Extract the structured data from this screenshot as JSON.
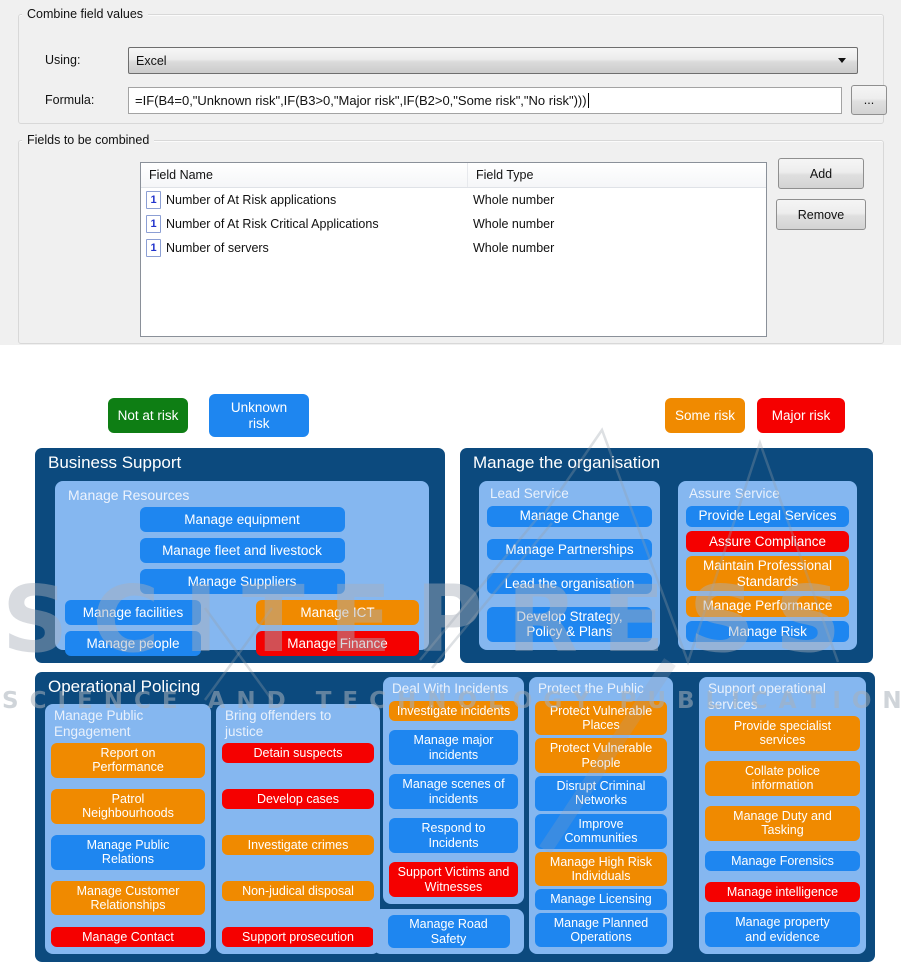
{
  "dialog": {
    "combine_group_label": "Combine field values",
    "using_label": "Using:",
    "using_value": "Excel",
    "formula_label": "Formula:",
    "formula_value": "=IF(B4=0,\"Unknown risk\",IF(B3>0,\"Major risk\",IF(B2>0,\"Some risk\",\"No risk\")))",
    "browse_button_label": "...",
    "fields_group_label": "Fields to be combined",
    "table": {
      "columns": [
        "Field Name",
        "Field Type"
      ],
      "rows": [
        {
          "icon": "1",
          "name": "Number of At Risk applications",
          "type": "Whole number"
        },
        {
          "icon": "1",
          "name": "Number of At Risk Critical Applications",
          "type": "Whole number"
        },
        {
          "icon": "1",
          "name": "Number of servers",
          "type": "Whole number"
        }
      ]
    },
    "add_button_label": "Add",
    "remove_button_label": "Remove"
  },
  "risk_colors": {
    "not_at_risk": "#0E7E14",
    "unknown_risk": "#1E86F0",
    "some_risk": "#F08A00",
    "major_risk": "#F50000"
  },
  "panel_colors": {
    "panel_navy": "#0C4A7E",
    "container_light_blue": "#85B7F0"
  },
  "legend": [
    {
      "label": "Not at risk",
      "risk": "not_at_risk"
    },
    {
      "label": "Unknown\nrisk",
      "risk": "unknown_risk"
    },
    {
      "label": "Some risk",
      "risk": "some_risk"
    },
    {
      "label": "Major risk",
      "risk": "major_risk"
    }
  ],
  "watermark": {
    "word": "SCITEPRESS",
    "caption": "SCIENCE AND TECHNOLOGY PUBLICATIONS"
  },
  "diagram": {
    "business_support": {
      "title": "Business Support",
      "group_title": "Manage Resources",
      "rows": [
        [
          {
            "label": "Manage equipment",
            "risk": "unknown_risk"
          }
        ],
        [
          {
            "label": "Manage fleet and livestock",
            "risk": "unknown_risk"
          }
        ],
        [
          {
            "label": "Manage Suppliers",
            "risk": "unknown_risk"
          }
        ],
        [
          {
            "label": "Manage facilities",
            "risk": "unknown_risk"
          },
          {
            "label": "Manage ICT",
            "risk": "some_risk"
          }
        ],
        [
          {
            "label": "Manage people",
            "risk": "unknown_risk"
          },
          {
            "label": "Manage Finance",
            "risk": "major_risk"
          }
        ]
      ]
    },
    "manage_organisation": {
      "title": "Manage the organisation",
      "columns": [
        {
          "title": "Lead Service",
          "items": [
            {
              "label": "Manage Change",
              "risk": "unknown_risk"
            },
            {
              "label": "Manage Partnerships",
              "risk": "unknown_risk"
            },
            {
              "label": "Lead the organisation",
              "risk": "unknown_risk"
            },
            {
              "label": "Develop Strategy,\nPolicy & Plans",
              "risk": "unknown_risk"
            }
          ]
        },
        {
          "title": "Assure Service",
          "items": [
            {
              "label": "Provide Legal Services",
              "risk": "unknown_risk"
            },
            {
              "label": "Assure Compliance",
              "risk": "major_risk"
            },
            {
              "label": "Maintain Professional\nStandards",
              "risk": "some_risk"
            },
            {
              "label": "Manage Performance",
              "risk": "some_risk"
            },
            {
              "label": "Manage Risk",
              "risk": "unknown_risk"
            }
          ]
        }
      ]
    },
    "operational_policing": {
      "title": "Operational Policing",
      "columns": [
        {
          "title": "Manage Public\nEngagement",
          "items": [
            {
              "label": "Report on\nPerformance",
              "risk": "some_risk"
            },
            {
              "label": "Patrol\nNeighbourhoods",
              "risk": "some_risk"
            },
            {
              "label": "Manage Public\nRelations",
              "risk": "unknown_risk"
            },
            {
              "label": "Manage Customer\nRelationships",
              "risk": "some_risk"
            },
            {
              "label": "Manage Contact",
              "risk": "major_risk"
            }
          ]
        },
        {
          "title": "Bring offenders to\njustice",
          "items": [
            {
              "label": "Detain suspects",
              "risk": "major_risk"
            },
            {
              "label": "Develop cases",
              "risk": "major_risk"
            },
            {
              "label": "Investigate crimes",
              "risk": "some_risk"
            },
            {
              "label": "Non-judical disposal",
              "risk": "some_risk"
            },
            {
              "label": "Support prosecution",
              "risk": "major_risk"
            }
          ]
        },
        {
          "title": "Deal With Incidents",
          "items": [
            {
              "label": "Investigate incidents",
              "risk": "some_risk"
            },
            {
              "label": "Manage major\nincidents",
              "risk": "unknown_risk"
            },
            {
              "label": "Manage scenes of\nincidents",
              "risk": "unknown_risk"
            },
            {
              "label": "Respond to\nIncidents",
              "risk": "unknown_risk"
            },
            {
              "label": "Support Victims and\nWitnesses",
              "risk": "major_risk"
            }
          ]
        },
        {
          "title": "Protect the Public",
          "items": [
            {
              "label": "Protect Vulnerable\nPlaces",
              "risk": "some_risk"
            },
            {
              "label": "Protect Vulnerable\nPeople",
              "risk": "some_risk"
            },
            {
              "label": "Disrupt Criminal\nNetworks",
              "risk": "unknown_risk"
            },
            {
              "label": "Improve\nCommunities",
              "risk": "unknown_risk"
            },
            {
              "label": "Manage High Risk\nIndividuals",
              "risk": "some_risk"
            },
            {
              "label": "Manage Licensing",
              "risk": "unknown_risk"
            },
            {
              "label": "Manage Planned\nOperations",
              "risk": "unknown_risk"
            }
          ]
        },
        {
          "title": "Support operational\nservices",
          "items": [
            {
              "label": "Provide specialist\nservices",
              "risk": "some_risk"
            },
            {
              "label": "Collate police\ninformation",
              "risk": "some_risk"
            },
            {
              "label": "Manage Duty and\nTasking",
              "risk": "some_risk"
            },
            {
              "label": "Manage Forensics",
              "risk": "unknown_risk"
            },
            {
              "label": "Manage intelligence",
              "risk": "major_risk"
            },
            {
              "label": "Manage property\nand evidence",
              "risk": "unknown_risk"
            }
          ]
        }
      ],
      "road_items": [
        {
          "label": "Manage Road\nSafety",
          "risk": "unknown_risk"
        }
      ]
    }
  }
}
